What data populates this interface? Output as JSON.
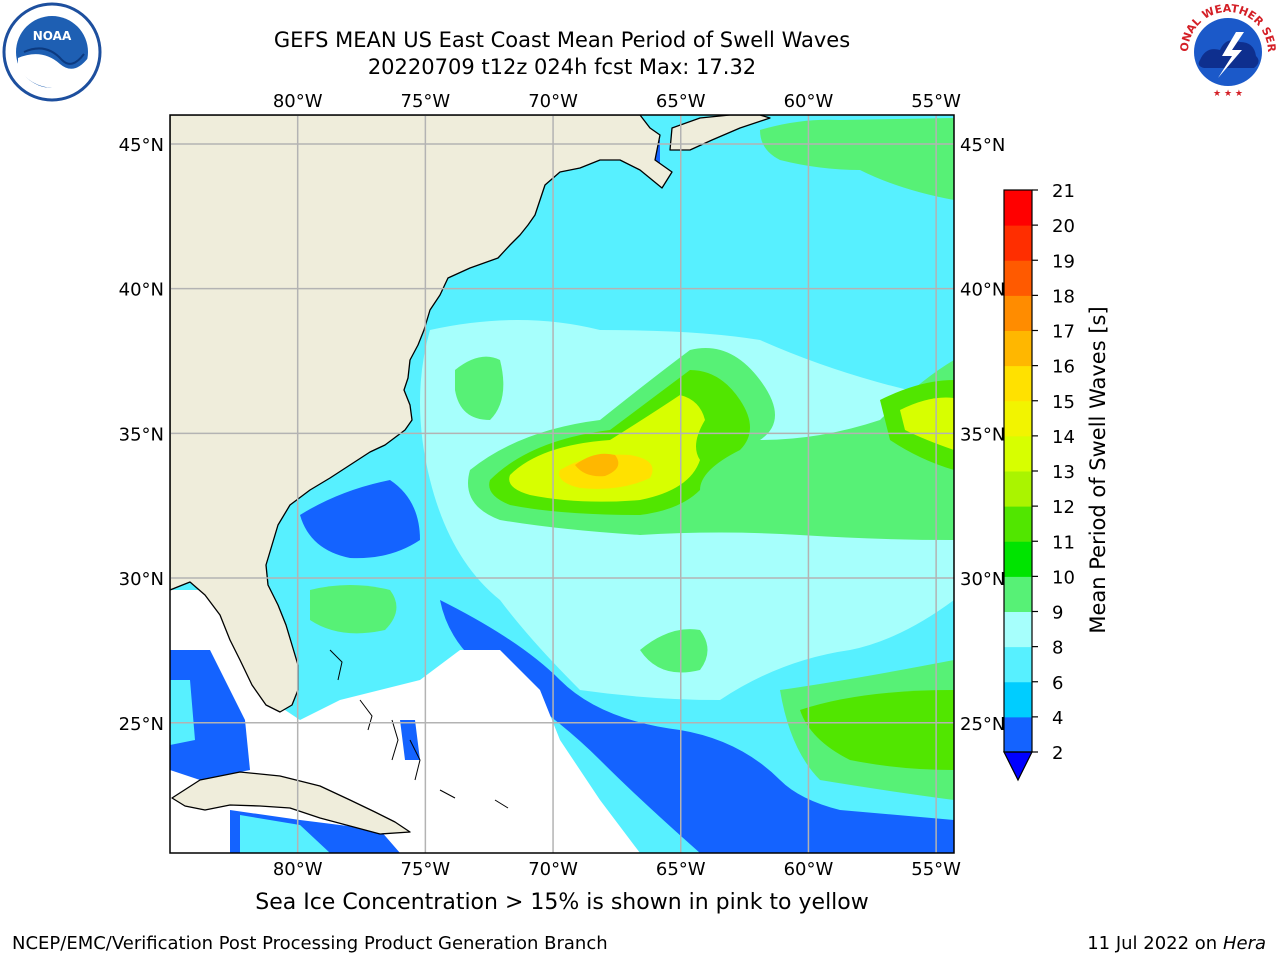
{
  "title": {
    "line1": "GEFS MEAN US East Coast Mean Period of Swell Waves",
    "line2": "20220709 t12z 024h fcst   Max: 17.32"
  },
  "logos": {
    "left": "NOAA",
    "right": "NATIONAL WEATHER SERVICE"
  },
  "map": {
    "lon_labels": [
      "80°W",
      "75°W",
      "70°W",
      "65°W",
      "60°W",
      "55°W"
    ],
    "lat_labels": [
      "45°N",
      "40°N",
      "35°N",
      "30°N",
      "25°N"
    ],
    "lon_range": [
      -85,
      -54.3
    ],
    "lat_range": [
      20.5,
      46
    ],
    "colors": {
      "land": "#efeddb",
      "grid": "#b3b3b3"
    }
  },
  "colorbar": {
    "title": "Mean Period of Swell Waves [s]",
    "ticks": [
      "2",
      "4",
      "6",
      "8",
      "9",
      "10",
      "11",
      "12",
      "13",
      "14",
      "15",
      "16",
      "17",
      "18",
      "19",
      "20",
      "21"
    ],
    "colors": [
      "#1463ff",
      "#00cdff",
      "#57f0ff",
      "#a6fffc",
      "#57f176",
      "#00e400",
      "#51e600",
      "#aaf400",
      "#d7ff00",
      "#f2f400",
      "#ffe100",
      "#ffb700",
      "#ff8c00",
      "#ff5a00",
      "#ff2e00",
      "#ff0000"
    ],
    "extend_color": "#0000ff"
  },
  "subtitle": "Sea Ice Concentration > 15% is shown in pink to yellow",
  "footer": {
    "left": "NCEP/EMC/Verification Post Processing Product Generation Branch",
    "right_prefix": "11 Jul 2022 on ",
    "right_host": "Hera"
  }
}
